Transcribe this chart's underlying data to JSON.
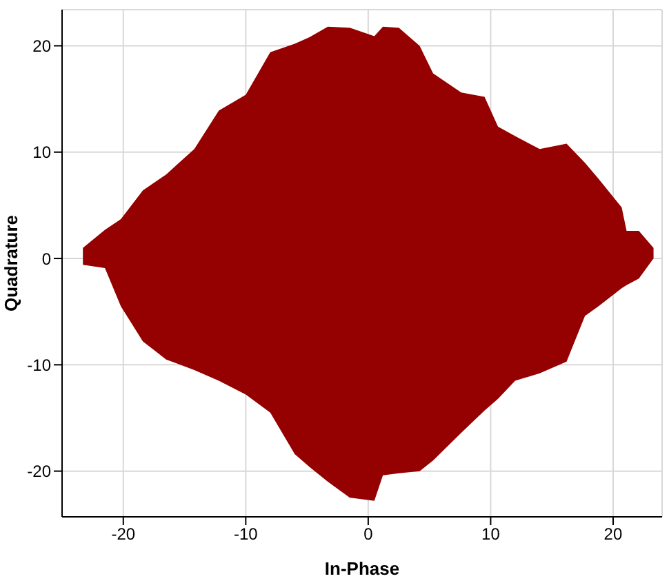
{
  "chart_data": {
    "type": "area",
    "xlabel": "In-Phase",
    "ylabel": "Quadrature",
    "xlim": [
      -25,
      24
    ],
    "ylim": [
      -24.3,
      23.4
    ],
    "xticks": [
      -20,
      -10,
      0,
      10,
      20
    ],
    "yticks": [
      -20,
      -10,
      0,
      10,
      20
    ],
    "grid": true,
    "series": [
      {
        "color": "#950000",
        "x": [
          -23.3,
          -21.5,
          -20.2,
          -18.4,
          -16.5,
          -14.2,
          -12.2,
          -10,
          -8,
          -6,
          -4.8,
          -3.3,
          -1.5,
          0.5,
          1.2,
          2.5,
          4.2,
          5.3,
          7.6,
          9.5,
          10.6,
          12,
          14,
          16.2,
          17.7,
          18.8,
          20.7,
          21.1,
          22.1,
          23.3
        ],
        "values": [
          1.0,
          2.7,
          3.7,
          6.4,
          7.9,
          10.3,
          13.9,
          15.4,
          19.4,
          20.2,
          20.8,
          21.8,
          21.7,
          20.9,
          21.8,
          21.7,
          20,
          17.4,
          15.6,
          15.2,
          12.4,
          11.5,
          10.3,
          10.8,
          9,
          7.5,
          4.8,
          2.6,
          2.6,
          1.0
        ]
      },
      {
        "color": "#950000",
        "x": [
          -23.3,
          -21.5,
          -20.2,
          -18.4,
          -16.5,
          -14.2,
          -12.2,
          -10,
          -8,
          -6,
          -4.8,
          -3.3,
          -1.5,
          0.5,
          1.2,
          2.5,
          4.2,
          5.3,
          7.6,
          9.5,
          10.6,
          12,
          14,
          16.2,
          17.7,
          18.8,
          20.7,
          21.1,
          22.1,
          23.3
        ],
        "values": [
          -0.6,
          -0.9,
          -4.5,
          -7.8,
          -9.5,
          -10.5,
          -11.5,
          -12.8,
          -14.5,
          -18.4,
          -19.6,
          -21,
          -22.5,
          -22.8,
          -20.4,
          -20.2,
          -20,
          -19,
          -16.4,
          -14.3,
          -13.2,
          -11.5,
          -10.8,
          -9.7,
          -5.4,
          -4.5,
          -2.8,
          -2.5,
          -1.9,
          0
        ]
      }
    ]
  }
}
